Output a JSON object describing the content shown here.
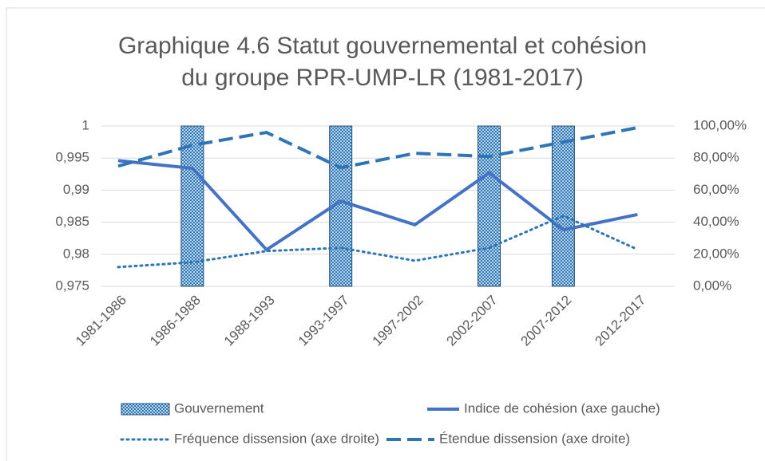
{
  "chart_data": {
    "type": "bar_line",
    "title": "Graphique 4.6 Statut gouvernemental et cohésion du groupe RPR-UMP-LR (1981-2017)",
    "categories": [
      "1981-1986",
      "1986-1988",
      "1988-1993",
      "1993-1997",
      "1997-2002",
      "2002-2007",
      "2007-2012",
      "2012-2017"
    ],
    "series": [
      {
        "name": "Gouvernement",
        "type": "bar",
        "axis": "y2",
        "color": "#2e75b6",
        "values": [
          0,
          100,
          0,
          100,
          0,
          100,
          100,
          0
        ]
      },
      {
        "name": "Indice de cohésion (axe gauche)",
        "type": "line",
        "style": "solid",
        "color": "#4472c4",
        "values": [
          0.9946,
          0.9934,
          0.9807,
          0.9883,
          0.9846,
          0.9927,
          0.9838,
          0.9862
        ]
      },
      {
        "name": "Fréquence dissension (axe droite)",
        "type": "line",
        "style": "dotted",
        "axis": "y2",
        "color": "#2e75b6",
        "values": [
          12,
          15,
          22,
          24,
          16,
          24,
          44,
          23
        ]
      },
      {
        "name": "Étendue dissension (axe droite)",
        "type": "line",
        "style": "dashed",
        "axis": "y2",
        "color": "#2e75b6",
        "values": [
          75,
          88,
          96,
          74,
          83,
          81,
          90,
          99
        ]
      }
    ],
    "ylim": [
      0.975,
      1
    ],
    "yticks": [
      {
        "value": 0.975,
        "label": "0,975"
      },
      {
        "value": 0.98,
        "label": "0,98"
      },
      {
        "value": 0.985,
        "label": "0,985"
      },
      {
        "value": 0.99,
        "label": "0,99"
      },
      {
        "value": 0.995,
        "label": "0,995"
      },
      1
    ],
    "y2lim": [
      0,
      100
    ],
    "y2ticks": [
      {
        "value": 0,
        "label": "0,00%"
      },
      {
        "value": 20,
        "label": "20,00%"
      },
      {
        "value": 40,
        "label": "40,00%"
      },
      {
        "value": 60,
        "label": "60,00%"
      },
      {
        "value": 80,
        "label": "80,00%"
      },
      {
        "value": 100,
        "label": "100,00%"
      }
    ],
    "grid": true
  }
}
